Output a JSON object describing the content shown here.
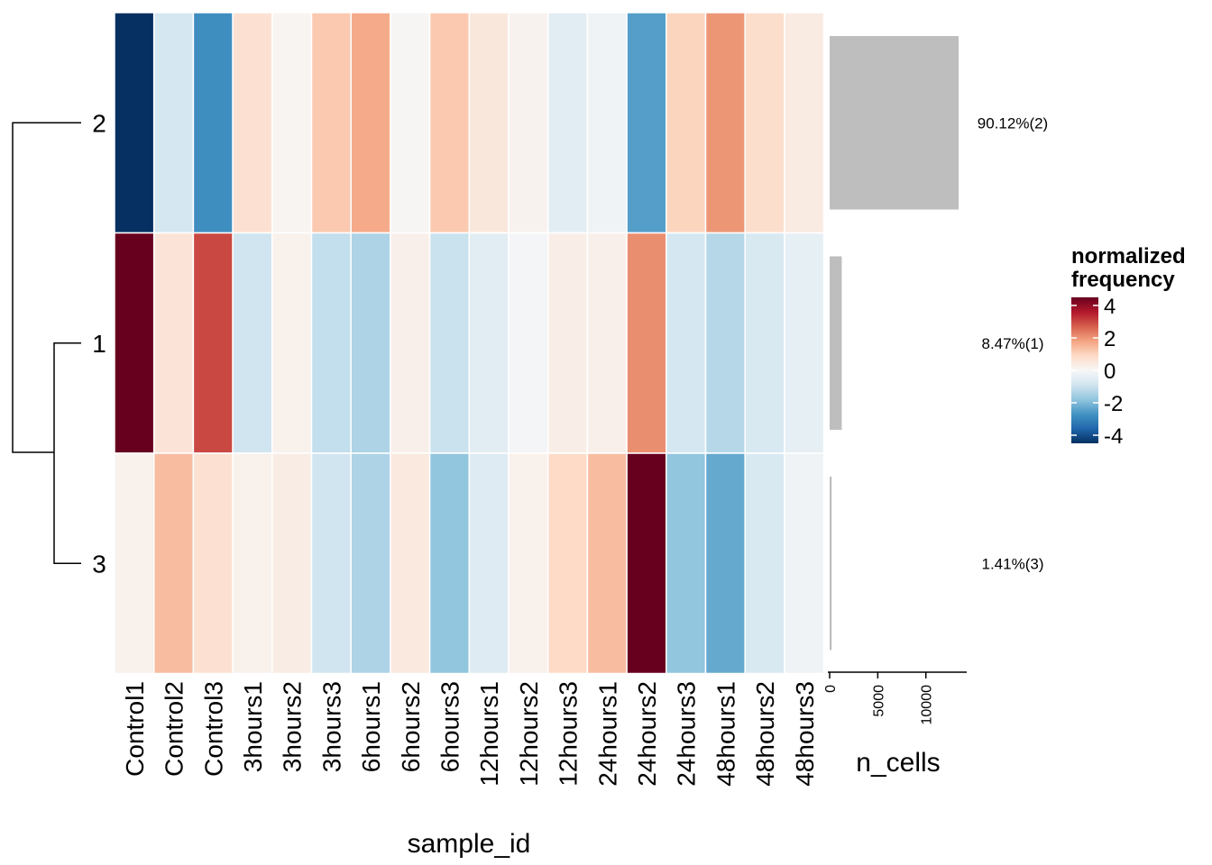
{
  "chart_data": {
    "type": "heatmap",
    "title": "",
    "xlabel": "sample_id",
    "columns": [
      "Control1",
      "Control2",
      "Control3",
      "3hours1",
      "3hours2",
      "3hours3",
      "6hours1",
      "6hours2",
      "6hours3",
      "12hours1",
      "12hours2",
      "12hours3",
      "24hours1",
      "24hours2",
      "24hours3",
      "48hours1",
      "48hours2",
      "48hours3"
    ],
    "rows": [
      "2",
      "1",
      "3"
    ],
    "values": [
      [
        -4.5,
        -0.8,
        -2.8,
        0.7,
        0.1,
        1.2,
        1.7,
        0.05,
        1.2,
        0.5,
        0.15,
        -0.5,
        -0.2,
        -2.5,
        1.0,
        2.0,
        0.8,
        0.4
      ],
      [
        4.8,
        0.6,
        3.0,
        -0.9,
        0.2,
        -1.1,
        -1.4,
        0.25,
        -1.0,
        -0.5,
        -0.1,
        0.3,
        0.25,
        2.1,
        -0.8,
        -1.3,
        -0.7,
        -0.4
      ],
      [
        0.2,
        1.4,
        0.7,
        0.2,
        0.35,
        -0.9,
        -1.4,
        0.45,
        -1.8,
        -0.6,
        0.2,
        0.9,
        1.4,
        5.0,
        -1.8,
        -2.3,
        -0.7,
        -0.2
      ]
    ],
    "dendrogram": {
      "merges": [
        [
          "1",
          "3"
        ],
        [
          "2",
          "1-3"
        ]
      ]
    },
    "legend": {
      "title_line1": "normalized",
      "title_line2": "frequency",
      "ticks": [
        "4",
        "2",
        "0",
        "-2",
        "-4"
      ],
      "range": [
        -4.5,
        4.5
      ],
      "placement": "right",
      "colors": [
        "#053061",
        "#2166AC",
        "#4393C3",
        "#92C5DE",
        "#D1E5F0",
        "#F7F7F7",
        "#FDDBC7",
        "#F4A582",
        "#D6604D",
        "#B2182B",
        "#67001F"
      ]
    },
    "bar_annotation": {
      "title": "n_cells",
      "xlim": [
        0,
        14000
      ],
      "ticks": [
        "0",
        "5000",
        "10000"
      ],
      "tick_values": [
        0,
        5000,
        10000
      ],
      "values": [
        13400,
        1260,
        210
      ],
      "labels": [
        "90.12%(2)",
        "8.47%(1)",
        "1.41%(3)"
      ],
      "bar_color": "#BEBEBE"
    }
  }
}
